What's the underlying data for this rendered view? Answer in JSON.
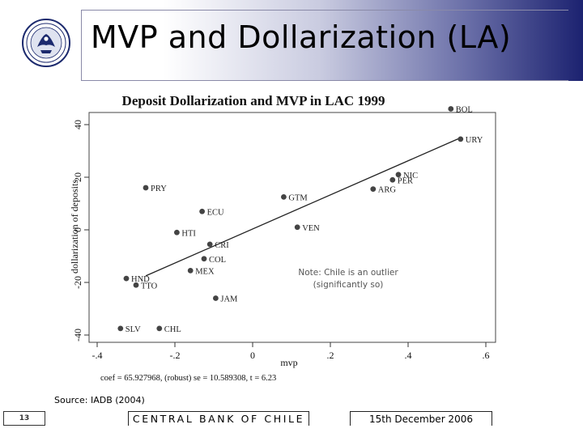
{
  "slide": {
    "title": "MVP and Dollarization (LA)",
    "source": "Source: IADB (2004)",
    "page_number": "13",
    "footer_org": "CENTRAL BANK OF CHILE",
    "footer_date": "15th December 2006",
    "note_line1": "Note: Chile is an outlier",
    "note_line2": "(significantly so)"
  },
  "colors": {
    "band_dark": "#1c2270",
    "point": "#444444",
    "line": "#222222"
  },
  "chart_data": {
    "type": "scatter",
    "title": "Deposit Dollarization and MVP in LAC 1999",
    "xlabel": "mvp",
    "ylabel": "dollarization of deposits",
    "xlim": [
      -0.4,
      0.6
    ],
    "ylim": [
      -40,
      40
    ],
    "xticks": [
      -0.4,
      -0.2,
      0,
      0.2,
      0.4,
      0.6
    ],
    "xtick_labels": [
      "-.4",
      "-.2",
      "0",
      ".2",
      ".4",
      ".6"
    ],
    "yticks": [
      -40,
      -20,
      0,
      20,
      40
    ],
    "ytick_labels": [
      "-40",
      "-20",
      "0",
      "20",
      "40"
    ],
    "grid": false,
    "points": [
      {
        "label": "BOL",
        "x": 0.51,
        "y": 46
      },
      {
        "label": "URY",
        "x": 0.535,
        "y": 34.5
      },
      {
        "label": "NIC",
        "x": 0.375,
        "y": 21
      },
      {
        "label": "PER",
        "x": 0.36,
        "y": 19
      },
      {
        "label": "ARG",
        "x": 0.31,
        "y": 15.5
      },
      {
        "label": "GTM",
        "x": 0.08,
        "y": 12.5
      },
      {
        "label": "VEN",
        "x": 0.115,
        "y": 1
      },
      {
        "label": "PRY",
        "x": -0.275,
        "y": 16
      },
      {
        "label": "ECU",
        "x": -0.13,
        "y": 7
      },
      {
        "label": "HTI",
        "x": -0.195,
        "y": -1
      },
      {
        "label": "CRI",
        "x": -0.11,
        "y": -5.5
      },
      {
        "label": "COL",
        "x": -0.125,
        "y": -11
      },
      {
        "label": "MEX",
        "x": -0.16,
        "y": -15.5
      },
      {
        "label": "HND",
        "x": -0.325,
        "y": -18.5
      },
      {
        "label": "TTO",
        "x": -0.3,
        "y": -21
      },
      {
        "label": "JAM",
        "x": -0.095,
        "y": -26
      },
      {
        "label": "SLV",
        "x": -0.34,
        "y": -37.5
      },
      {
        "label": "CHL",
        "x": -0.24,
        "y": -37.5
      }
    ],
    "fit_line": {
      "x": [
        -0.275,
        0.535
      ],
      "y": [
        -17.5,
        35
      ]
    },
    "annotation": "coef = 65.927968, (robust) se = 10.589308, t = 6.23"
  }
}
